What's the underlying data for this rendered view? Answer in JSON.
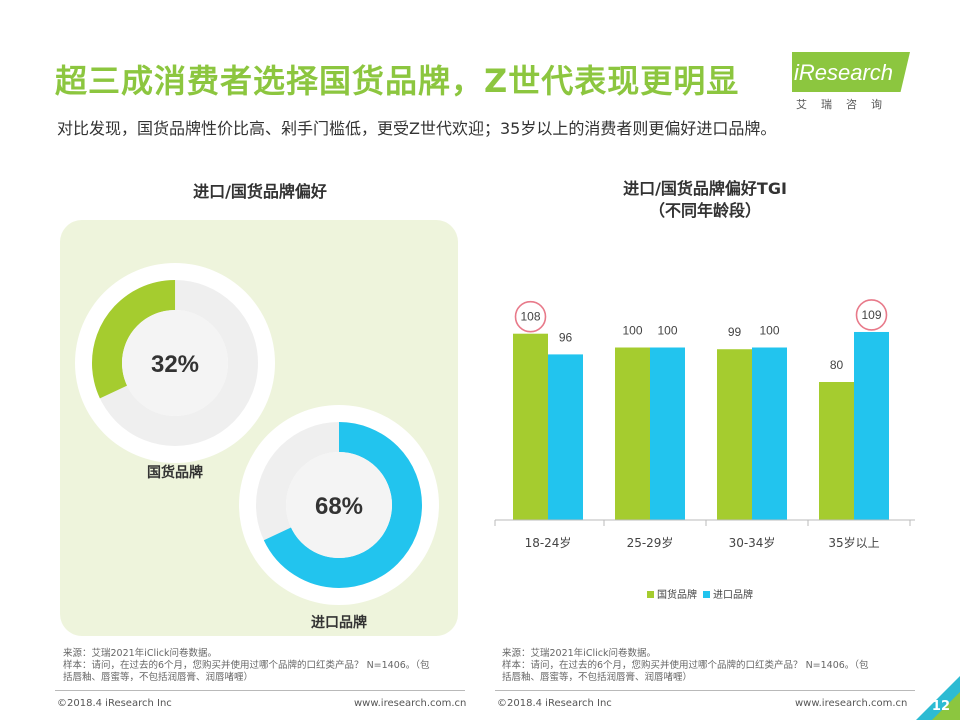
{
  "header": {
    "title": "超三成消费者选择国货品牌，Z世代表现更明显",
    "subtitle": "对比发现，国货品牌性价比高、剁手门槛低，更受Z世代欢迎；35岁以上的消费者则更偏好进口品牌。"
  },
  "logo": {
    "text": "iResearch",
    "sub": "艾瑞咨询"
  },
  "colors": {
    "green": "#a5cc2f",
    "blue": "#22c4ee",
    "title_green": "#8cc63f",
    "highlight": "#e87a8a"
  },
  "chart_data": [
    {
      "type": "pie",
      "title": "进口/国货品牌偏好",
      "slices": [
        {
          "name": "国货品牌",
          "value": 32,
          "label": "32%",
          "color": "#a5cc2f"
        },
        {
          "name": "进口品牌",
          "value": 68,
          "label": "68%",
          "color": "#22c4ee"
        }
      ]
    },
    {
      "type": "bar",
      "title": "进口/国货品牌偏好TGI",
      "title_line2": "（不同年龄段）",
      "categories": [
        "18-24岁",
        "25-29岁",
        "30-34岁",
        "35岁以上"
      ],
      "series": [
        {
          "name": "国货品牌",
          "color": "#a5cc2f",
          "values": [
            108,
            100,
            99,
            80
          ]
        },
        {
          "name": "进口品牌",
          "color": "#22c4ee",
          "values": [
            96,
            100,
            100,
            109
          ]
        }
      ],
      "ylim": [
        0,
        120
      ],
      "grid": false,
      "legend": "bottom",
      "highlighted": [
        "国货品牌/18-24岁",
        "进口品牌/35岁以上"
      ]
    }
  ],
  "notes": {
    "left": [
      "来源：艾瑞2021年iClick问卷数据。",
      "样本：请问，在过去的6个月，您购买并使用过哪个品牌的口红类产品？ N=1406。（包",
      "括唇釉、唇蜜等，不包括润唇膏、润唇啫喱）"
    ],
    "right": [
      "来源：艾瑞2021年iClick问卷数据。",
      "样本：请问，在过去的6个月，您购买并使用过哪个品牌的口红类产品？ N=1406。（包",
      "括唇釉、唇蜜等，不包括润唇膏、润唇啫喱）"
    ]
  },
  "footer": {
    "copyright": "©2018.4 iResearch Inc",
    "url": "www.iresearch.com.cn",
    "page": "12"
  }
}
